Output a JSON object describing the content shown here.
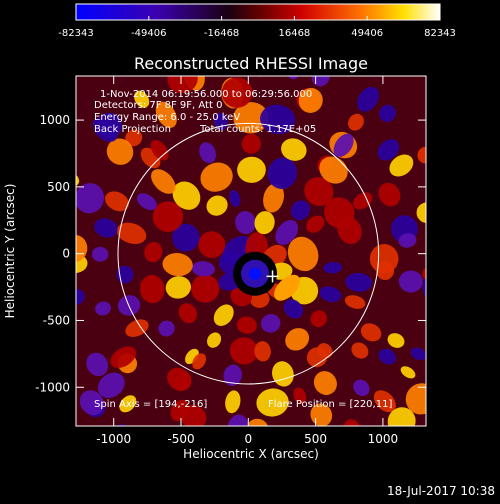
{
  "figure": {
    "title": "Reconstructed RHESSI Image",
    "date_stamp": "18-Jul-2017 10:38"
  },
  "colorbar": {
    "colormap": "blue-black-red-yellow-white",
    "ticks": [
      "-82343",
      "-49406",
      "-16468",
      "16468",
      "49406",
      "82343"
    ],
    "range": [
      -82343,
      82343
    ]
  },
  "annotations": {
    "time_range": "1-Nov-2014 06:19:56.000 to 06:29:56.000",
    "detectors": "Detectors: 7F 8F 9F, Att 0",
    "energy": "Energy Range: 6.0 - 25.0 keV",
    "method": "Back Projection",
    "counts": "Total counts: 1.17E+05",
    "spin_axis": "Spin Axis = [194,-216]",
    "flare_position": "Flare Position = [220,11]"
  },
  "chart_data": {
    "type": "heatmap",
    "title": "Reconstructed RHESSI Image",
    "xlabel": "Heliocentric X (arcsec)",
    "ylabel": "Heliocentric Y (arcsec)",
    "xlim": [
      -1280,
      1320
    ],
    "ylim": [
      -1290,
      1330
    ],
    "xticks": [
      -1000,
      -500,
      0,
      500,
      1000
    ],
    "yticks": [
      -1000,
      -500,
      0,
      500,
      1000
    ],
    "xtick_labels": [
      "-1000",
      "-500",
      "0",
      "500",
      "1000"
    ],
    "ytick_labels": [
      "-1000",
      "-500",
      "0",
      "500",
      "1000"
    ],
    "grid": false,
    "solar_limb": {
      "center": [
        0,
        0
      ],
      "radius_arcsec": 968
    },
    "spin_axis": [
      194,
      -216
    ],
    "flare_position": [
      220,
      11
    ],
    "value_range": [
      -82343,
      82343
    ],
    "central_minimum": [
      50,
      -150
    ]
  }
}
